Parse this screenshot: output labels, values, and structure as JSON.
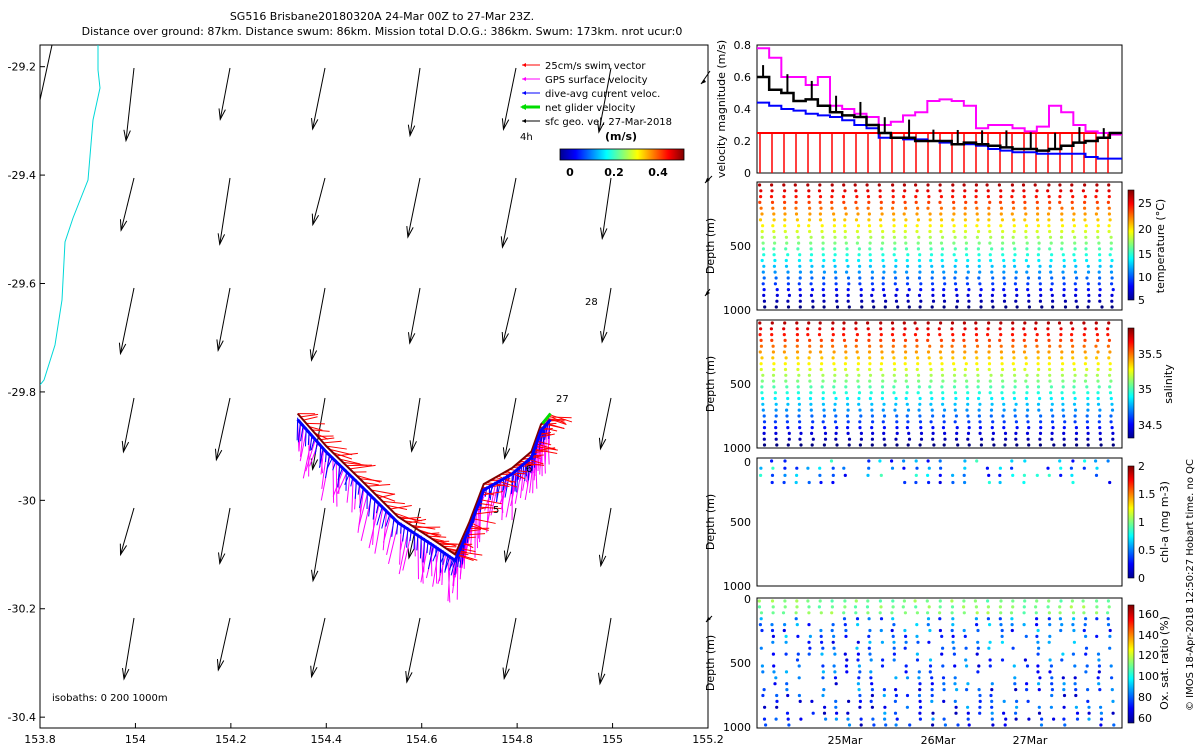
{
  "header": {
    "line1": "SG516 Brisbane20180320A 24-Mar 00Z to 27-Mar 23Z.",
    "line2": "Distance over ground: 87km. Distance swum: 86km. Mission total D.O.G.: 386km. Swum: 173km. nrot ucur:0"
  },
  "side_note": "© IMOS 18-Apr-2018 12:50:27 Hobart time. no QC",
  "colors": {
    "swim": "#ff0000",
    "gps": "#ff00ff",
    "dive_avg": "#0000ff",
    "net": "#00dd00",
    "geo": "#000000",
    "coast": "#00d8d8"
  },
  "chart_data": [
    {
      "type": "scatter",
      "name": "map",
      "xlim": [
        153.8,
        155.2
      ],
      "ylim": [
        -30.42,
        -29.16
      ],
      "x_ticks": [
        "153.8",
        "154",
        "154.2",
        "154.4",
        "154.6",
        "154.8",
        "155",
        "155.2"
      ],
      "y_ticks": [
        "-29.2",
        "-29.4",
        "-29.6",
        "-29.8",
        "-30",
        "-30.2",
        "-30.4"
      ],
      "legend": {
        "entries": [
          {
            "label": "25cm/s swim vector",
            "color": "#ff0000"
          },
          {
            "label": "GPS surface velocity",
            "color": "#ff00ff"
          },
          {
            "label": "dive-avg current veloc.",
            "color": "#0000ff"
          },
          {
            "label": "net glider velocity",
            "color": "#00dd00"
          },
          {
            "label": "sfc geo. vel. 27-Mar-2018",
            "color": "#000000"
          }
        ],
        "time_label": "4h",
        "colorbar_title": "(m/s)",
        "colorbar_ticks": [
          "0",
          "0.2",
          "0.4"
        ]
      },
      "isobath_label": "isobaths: 0   200   1000m",
      "day_labels": [
        {
          "text": "27",
          "x": 154.87,
          "y": -29.84
        },
        {
          "text": "28",
          "x": 154.92,
          "y": -29.63
        },
        {
          "text": "6",
          "x": 154.83,
          "y": -29.94
        },
        {
          "text": "5",
          "x": 154.78,
          "y": -30.01
        }
      ],
      "track": [
        [
          154.34,
          -29.84
        ],
        [
          154.4,
          -29.9
        ],
        [
          154.47,
          -29.96
        ],
        [
          154.55,
          -30.03
        ],
        [
          154.62,
          -30.07
        ],
        [
          154.67,
          -30.1
        ],
        [
          154.7,
          -30.04
        ],
        [
          154.73,
          -29.97
        ],
        [
          154.79,
          -29.94
        ],
        [
          154.83,
          -29.91
        ],
        [
          154.85,
          -29.86
        ],
        [
          154.87,
          -29.84
        ]
      ]
    },
    {
      "type": "line",
      "name": "velocity",
      "ylabel": "velocity magnitude (m/s)",
      "ylim": [
        0,
        0.8
      ],
      "y_ticks": [
        "0",
        "0.2",
        "0.4",
        "0.6",
        "0.8"
      ],
      "x_ticks": [
        "25Mar",
        "26Mar",
        "27Mar"
      ]
    },
    {
      "type": "scatter",
      "name": "temperature",
      "ylabel": "Depth (m)",
      "colorbar_label": "temperature (°C)",
      "y_ticks": [
        "",
        "500",
        "1000"
      ],
      "colorbar_ticks": [
        "5",
        "10",
        "15",
        "20",
        "25"
      ]
    },
    {
      "type": "scatter",
      "name": "salinity",
      "ylabel": "Depth (m)",
      "colorbar_label": "salinity",
      "y_ticks": [
        "",
        "500",
        "1000"
      ],
      "colorbar_ticks": [
        "34.5",
        "35",
        "35.5"
      ]
    },
    {
      "type": "scatter",
      "name": "chl-a",
      "ylabel": "Depth (m)",
      "colorbar_label": "chl-a (mg m-3)",
      "y_ticks": [
        "0",
        "500",
        "1000"
      ],
      "colorbar_ticks": [
        "0",
        "0.5",
        "1",
        "1.5",
        "2"
      ]
    },
    {
      "type": "scatter",
      "name": "oxygen",
      "ylabel": "Depth (m)",
      "colorbar_label": "Ox. sat. ratio (%)",
      "y_ticks": [
        "0",
        "500",
        "1000"
      ],
      "colorbar_ticks": [
        "60",
        "80",
        "100",
        "120",
        "140",
        "160"
      ]
    }
  ]
}
